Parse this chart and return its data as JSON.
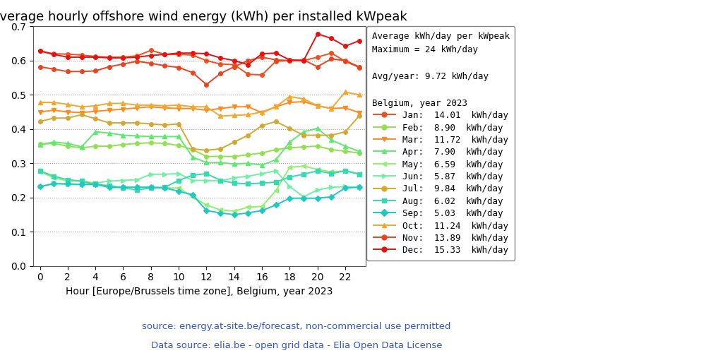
{
  "title": "Average hourly offshore wind energy (kWh) per installed kWpeak",
  "xlabel": "Hour [Europe/Brussels time zone], Belgium, year 2023",
  "source_line1": "source: energy.at-site.be/forecast, non-commercial use permitted",
  "source_line2": "Data source: elia.be - open grid data - Elia Open Data License",
  "legend_title": "Average kWh/day per kWpeak\nMaximum = 24 kWh/day\n\nAvg/year: 9.72 kWh/day\n\nBelgium, year 2023",
  "hours": [
    0,
    1,
    2,
    3,
    4,
    5,
    6,
    7,
    8,
    9,
    10,
    11,
    12,
    13,
    14,
    15,
    16,
    17,
    18,
    19,
    20,
    21,
    22,
    23
  ],
  "months": [
    "Jan",
    "Feb",
    "Mar",
    "Apr",
    "May",
    "Jun",
    "Jul",
    "Aug",
    "Sep",
    "Oct",
    "Nov",
    "Dec"
  ],
  "monthly_avg": [
    14.01,
    8.9,
    11.72,
    7.9,
    6.59,
    5.87,
    9.84,
    6.02,
    5.03,
    11.24,
    13.89,
    15.33
  ],
  "colors": [
    "#f05020",
    "#90e050",
    "#ff8820",
    "#60e870",
    "#90f070",
    "#70f0a0",
    "#d4a830",
    "#38d8b0",
    "#20c8c0",
    "#f0a830",
    "#e84420",
    "#e81010"
  ],
  "markers": [
    "o",
    "o",
    "v",
    "^",
    "<",
    ">",
    "o",
    "s",
    "D",
    "^",
    "o",
    "o"
  ],
  "markersize": 4,
  "linewidth": 1.4,
  "data": {
    "Jan": [
      0.628,
      0.62,
      0.619,
      0.616,
      0.612,
      0.61,
      0.61,
      0.614,
      0.63,
      0.618,
      0.618,
      0.616,
      0.6,
      0.59,
      0.588,
      0.56,
      0.558,
      0.598,
      0.6,
      0.6,
      0.61,
      0.622,
      0.598,
      0.58
    ],
    "Feb": [
      0.356,
      0.358,
      0.35,
      0.345,
      0.35,
      0.35,
      0.355,
      0.358,
      0.36,
      0.358,
      0.352,
      0.34,
      0.32,
      0.32,
      0.32,
      0.325,
      0.33,
      0.34,
      0.345,
      0.348,
      0.35,
      0.34,
      0.335,
      0.33
    ],
    "Mar": [
      0.45,
      0.455,
      0.45,
      0.448,
      0.452,
      0.455,
      0.458,
      0.462,
      0.465,
      0.462,
      0.46,
      0.46,
      0.455,
      0.46,
      0.465,
      0.465,
      0.448,
      0.465,
      0.478,
      0.48,
      0.468,
      0.46,
      0.462,
      0.448
    ],
    "Apr": [
      0.355,
      0.362,
      0.358,
      0.348,
      0.392,
      0.388,
      0.382,
      0.38,
      0.378,
      0.378,
      0.378,
      0.318,
      0.302,
      0.302,
      0.298,
      0.3,
      0.295,
      0.31,
      0.362,
      0.392,
      0.402,
      0.368,
      0.35,
      0.335
    ],
    "May": [
      0.275,
      0.258,
      0.248,
      0.248,
      0.242,
      0.228,
      0.23,
      0.23,
      0.23,
      0.228,
      0.228,
      0.202,
      0.178,
      0.164,
      0.16,
      0.172,
      0.174,
      0.22,
      0.288,
      0.292,
      0.282,
      0.275,
      0.278,
      0.27
    ],
    "Jun": [
      0.232,
      0.242,
      0.238,
      0.238,
      0.242,
      0.248,
      0.25,
      0.252,
      0.268,
      0.268,
      0.27,
      0.25,
      0.25,
      0.248,
      0.258,
      0.262,
      0.27,
      0.278,
      0.232,
      0.202,
      0.222,
      0.23,
      0.232,
      0.23
    ],
    "Jul": [
      0.422,
      0.432,
      0.432,
      0.442,
      0.43,
      0.418,
      0.418,
      0.418,
      0.415,
      0.412,
      0.415,
      0.342,
      0.338,
      0.342,
      0.362,
      0.382,
      0.41,
      0.422,
      0.402,
      0.382,
      0.382,
      0.382,
      0.392,
      0.438
    ],
    "Aug": [
      0.278,
      0.262,
      0.252,
      0.248,
      0.238,
      0.235,
      0.228,
      0.222,
      0.228,
      0.23,
      0.25,
      0.265,
      0.27,
      0.25,
      0.242,
      0.24,
      0.242,
      0.245,
      0.26,
      0.268,
      0.278,
      0.27,
      0.278,
      0.268
    ],
    "Sep": [
      0.232,
      0.24,
      0.24,
      0.238,
      0.238,
      0.23,
      0.23,
      0.23,
      0.23,
      0.228,
      0.218,
      0.208,
      0.162,
      0.155,
      0.15,
      0.155,
      0.162,
      0.178,
      0.198,
      0.198,
      0.198,
      0.202,
      0.228,
      0.23
    ],
    "Oct": [
      0.478,
      0.478,
      0.472,
      0.465,
      0.468,
      0.475,
      0.475,
      0.47,
      0.47,
      0.468,
      0.47,
      0.465,
      0.465,
      0.438,
      0.44,
      0.442,
      0.45,
      0.465,
      0.495,
      0.488,
      0.468,
      0.46,
      0.508,
      0.5
    ],
    "Nov": [
      0.582,
      0.575,
      0.568,
      0.568,
      0.57,
      0.582,
      0.59,
      0.598,
      0.592,
      0.585,
      0.58,
      0.565,
      0.53,
      0.562,
      0.582,
      0.6,
      0.61,
      0.602,
      0.6,
      0.602,
      0.582,
      0.605,
      0.6,
      0.582
    ],
    "Dec": [
      0.628,
      0.618,
      0.61,
      0.61,
      0.61,
      0.608,
      0.608,
      0.61,
      0.615,
      0.618,
      0.622,
      0.622,
      0.62,
      0.608,
      0.6,
      0.588,
      0.62,
      0.622,
      0.602,
      0.6,
      0.678,
      0.665,
      0.642,
      0.658
    ]
  },
  "ylim": [
    0.0,
    0.7
  ],
  "yticks": [
    0.0,
    0.1,
    0.2,
    0.3,
    0.4,
    0.5,
    0.6,
    0.7
  ],
  "xticks": [
    0,
    2,
    4,
    6,
    8,
    10,
    12,
    14,
    16,
    18,
    20,
    22
  ],
  "bg_color": "#ffffff",
  "grid_color": "#999999",
  "source_color": "#3355cc",
  "title_fontsize": 13,
  "axis_label_fontsize": 10,
  "legend_fontsize": 9,
  "tick_fontsize": 10
}
